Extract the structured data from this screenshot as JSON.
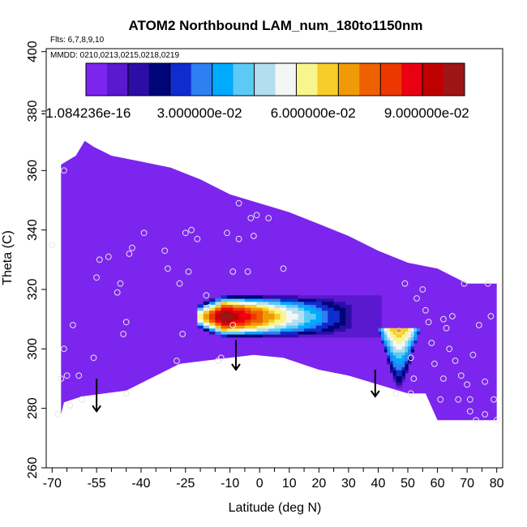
{
  "chart_data": {
    "type": "heatmap",
    "title": "ATOM2 Northbound LAM_num_180to1150nm",
    "subtitle_flights": "Flts: 6,7,8,9,10",
    "subtitle_dates": "MMDD: 0210,0213,0215,0218,0219",
    "xlabel": "Latitude (deg N)",
    "ylabel": "Theta (C)",
    "xlim": [
      -72,
      82
    ],
    "ylim": [
      260,
      401
    ],
    "xticks_major": [
      -70,
      -55,
      -40,
      -25,
      -10,
      0,
      10,
      20,
      30,
      40,
      50,
      60,
      70,
      80
    ],
    "xticks_minor": [
      -65,
      -60,
      -50,
      -45,
      -35,
      -30,
      -20,
      -15,
      -5,
      5,
      15,
      25,
      35,
      45,
      55,
      65,
      75
    ],
    "yticks": [
      260,
      280,
      300,
      320,
      340,
      360,
      380,
      400
    ],
    "colorbar": {
      "labels": [
        "-1.084236e-16",
        "3.000000e-02",
        "6.000000e-02",
        "9.000000e-02"
      ],
      "colors": [
        "#7c25ee",
        "#5a18cf",
        "#2c0ea7",
        "#000578",
        "#0f2ccf",
        "#2e7ff2",
        "#00aaff",
        "#5ccaf5",
        "#b2def0",
        "#f2f7f6",
        "#f7f68e",
        "#f7cd2a",
        "#f19a07",
        "#ef6100",
        "#ec3800",
        "#ea0010",
        "#bf0000",
        "#9d1515"
      ]
    },
    "background_color": "#7c25ee",
    "field_boundary": [
      [
        -67,
        278
      ],
      [
        -66,
        282
      ],
      [
        -60,
        284
      ],
      [
        -45,
        286
      ],
      [
        -27,
        295
      ],
      [
        -2,
        298
      ],
      [
        8,
        297
      ],
      [
        20,
        293
      ],
      [
        30,
        291
      ],
      [
        40,
        288
      ],
      [
        50,
        285
      ],
      [
        56,
        285
      ],
      [
        60,
        276
      ],
      [
        80,
        276
      ],
      [
        80,
        322
      ],
      [
        70,
        322
      ],
      [
        60,
        327
      ],
      [
        50,
        329
      ],
      [
        40,
        333
      ],
      [
        30,
        338
      ],
      [
        20,
        342
      ],
      [
        10,
        346
      ],
      [
        0,
        349
      ],
      [
        -10,
        352
      ],
      [
        -20,
        357
      ],
      [
        -30,
        361
      ],
      [
        -40,
        363
      ],
      [
        -50,
        365
      ],
      [
        -56,
        368
      ],
      [
        -59,
        370
      ],
      [
        -62,
        365
      ],
      [
        -67,
        362
      ]
    ],
    "blobs": [
      {
        "shape": "plume",
        "x_range": [
          -21,
          41
        ],
        "y_range": [
          296,
          325
        ],
        "peak": 0.1,
        "peak_at": [
          -12,
          310
        ]
      },
      {
        "shape": "cone",
        "x_range": [
          39,
          55
        ],
        "y_range": [
          286,
          308
        ],
        "peak": 0.07,
        "peak_at": [
          47,
          302
        ]
      }
    ],
    "sample_points": [
      [
        -70,
        335
      ],
      [
        -68,
        278
      ],
      [
        -67,
        290
      ],
      [
        -66,
        300
      ],
      [
        -66,
        360
      ],
      [
        -65,
        291
      ],
      [
        -64,
        281
      ],
      [
        -63,
        308
      ],
      [
        -61,
        291
      ],
      [
        -60,
        283
      ],
      [
        -56,
        297
      ],
      [
        -55,
        324
      ],
      [
        -54,
        330
      ],
      [
        -51,
        331
      ],
      [
        -48,
        319
      ],
      [
        -47,
        322
      ],
      [
        -46,
        305
      ],
      [
        -45,
        285
      ],
      [
        -45,
        309
      ],
      [
        -44,
        332
      ],
      [
        -43,
        334
      ],
      [
        -39,
        339
      ],
      [
        -32,
        333
      ],
      [
        -31,
        327
      ],
      [
        -28,
        296
      ],
      [
        -27,
        322
      ],
      [
        -26,
        305
      ],
      [
        -25,
        339
      ],
      [
        -24,
        326
      ],
      [
        -23,
        340
      ],
      [
        -21,
        337
      ],
      [
        -18,
        318
      ],
      [
        -17,
        314
      ],
      [
        -14,
        296
      ],
      [
        -13,
        297
      ],
      [
        -11,
        339
      ],
      [
        -9,
        308
      ],
      [
        -9,
        326
      ],
      [
        -7,
        349
      ],
      [
        -7,
        337
      ],
      [
        -4,
        326
      ],
      [
        -3,
        344
      ],
      [
        -2,
        338
      ],
      [
        -1,
        345
      ],
      [
        3,
        344
      ],
      [
        8,
        327
      ],
      [
        46,
        285
      ],
      [
        47,
        306
      ],
      [
        49,
        322
      ],
      [
        51,
        305
      ],
      [
        51,
        297
      ],
      [
        51,
        285
      ],
      [
        52,
        290
      ],
      [
        53,
        317
      ],
      [
        55,
        320
      ],
      [
        56,
        313
      ],
      [
        57,
        309
      ],
      [
        58,
        302
      ],
      [
        59,
        295
      ],
      [
        61,
        283
      ],
      [
        62,
        290
      ],
      [
        62,
        310
      ],
      [
        63,
        307
      ],
      [
        64,
        300
      ],
      [
        65,
        311
      ],
      [
        66,
        296
      ],
      [
        67,
        283
      ],
      [
        68,
        291
      ],
      [
        69,
        322
      ],
      [
        70,
        288
      ],
      [
        71,
        279
      ],
      [
        71,
        283
      ],
      [
        72,
        298
      ],
      [
        73,
        276
      ],
      [
        74,
        308
      ],
      [
        76,
        278
      ],
      [
        76,
        289
      ],
      [
        77,
        322
      ],
      [
        78,
        311
      ],
      [
        79,
        283
      ],
      [
        80,
        276
      ]
    ],
    "annotations_arrows": [
      {
        "x": -55,
        "y_from": 290,
        "y_to": 279
      },
      {
        "x": -8,
        "y_from": 303,
        "y_to": 293
      },
      {
        "x": 39,
        "y_from": 293,
        "y_to": 284
      }
    ]
  }
}
